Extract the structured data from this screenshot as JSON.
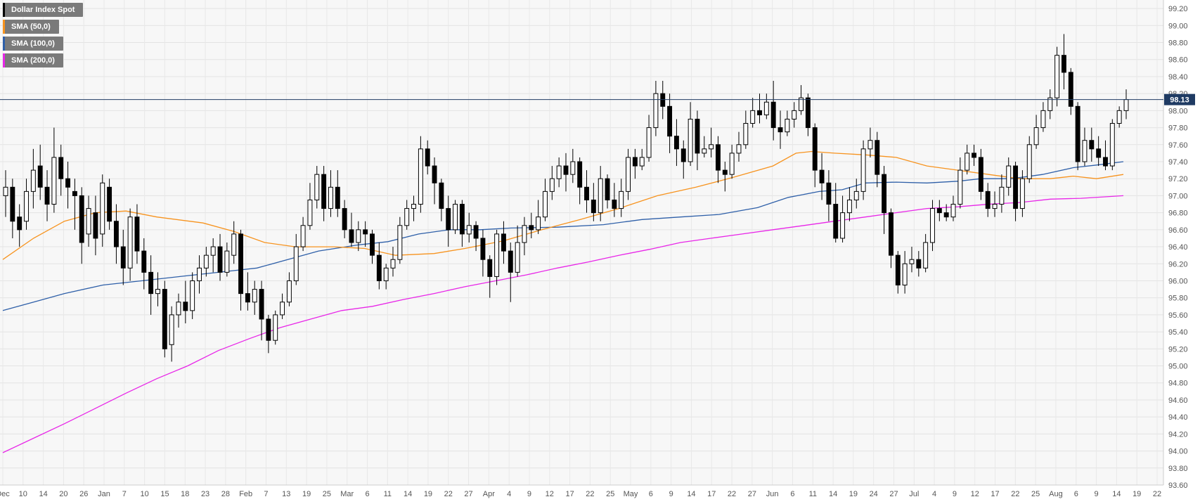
{
  "legend": [
    {
      "label": "Dollar Index Spot",
      "color": "#000000"
    },
    {
      "label": "SMA (50,0)",
      "color": "#f7931e"
    },
    {
      "label": "SMA (100,0)",
      "color": "#2e5fa8"
    },
    {
      "label": "SMA (200,0)",
      "color": "#e826e8"
    }
  ],
  "current_price_label": "98.13",
  "chart_data": {
    "type": "candlestick",
    "ylim": [
      93.6,
      99.3
    ],
    "y_ticks": [
      "93.60",
      "93.80",
      "94.00",
      "94.20",
      "94.40",
      "94.60",
      "94.80",
      "95.00",
      "95.20",
      "95.40",
      "95.60",
      "95.80",
      "96.00",
      "96.20",
      "96.40",
      "96.60",
      "96.80",
      "97.00",
      "97.20",
      "97.40",
      "97.60",
      "97.80",
      "98.00",
      "98.20",
      "98.40",
      "98.60",
      "98.80",
      "99.00",
      "99.20"
    ],
    "x_tick_labels": [
      "Dec",
      "10",
      "14",
      "20",
      "26",
      "Jan",
      "7",
      "10",
      "15",
      "18",
      "23",
      "28",
      "Feb",
      "7",
      "13",
      "19",
      "25",
      "Mar",
      "6",
      "11",
      "14",
      "19",
      "22",
      "27",
      "Apr",
      "4",
      "9",
      "12",
      "17",
      "22",
      "25",
      "May",
      "6",
      "9",
      "14",
      "17",
      "22",
      "27",
      "Jun",
      "6",
      "11",
      "14",
      "19",
      "24",
      "27",
      "Jul",
      "4",
      "9",
      "12",
      "17",
      "22",
      "25",
      "Aug",
      "6",
      "9",
      "14",
      "19",
      "22"
    ],
    "current_price": 98.13,
    "sma_50": [
      [
        0,
        96.25
      ],
      [
        40,
        96.5
      ],
      [
        80,
        96.7
      ],
      [
        120,
        96.8
      ],
      [
        160,
        96.82
      ],
      [
        200,
        96.75
      ],
      [
        260,
        96.68
      ],
      [
        300,
        96.58
      ],
      [
        340,
        96.45
      ],
      [
        380,
        96.4
      ],
      [
        430,
        96.4
      ],
      [
        470,
        96.38
      ],
      [
        510,
        96.3
      ],
      [
        560,
        96.32
      ],
      [
        600,
        96.38
      ],
      [
        650,
        96.47
      ],
      [
        700,
        96.6
      ],
      [
        750,
        96.72
      ],
      [
        800,
        96.85
      ],
      [
        850,
        97.0
      ],
      [
        900,
        97.1
      ],
      [
        950,
        97.22
      ],
      [
        1000,
        97.35
      ],
      [
        1030,
        97.5
      ],
      [
        1050,
        97.52
      ],
      [
        1080,
        97.5
      ],
      [
        1120,
        97.48
      ],
      [
        1160,
        97.45
      ],
      [
        1200,
        97.35
      ],
      [
        1240,
        97.3
      ],
      [
        1280,
        97.25
      ],
      [
        1320,
        97.2
      ],
      [
        1360,
        97.2
      ],
      [
        1390,
        97.23
      ],
      [
        1420,
        97.2
      ],
      [
        1455,
        97.25
      ]
    ],
    "sma_100": [
      [
        0,
        95.65
      ],
      [
        40,
        95.75
      ],
      [
        80,
        95.85
      ],
      [
        130,
        95.95
      ],
      [
        180,
        96.0
      ],
      [
        230,
        96.05
      ],
      [
        280,
        96.1
      ],
      [
        330,
        96.15
      ],
      [
        370,
        96.25
      ],
      [
        410,
        96.35
      ],
      [
        460,
        96.42
      ],
      [
        500,
        96.46
      ],
      [
        540,
        96.55
      ],
      [
        580,
        96.6
      ],
      [
        620,
        96.6
      ],
      [
        660,
        96.62
      ],
      [
        720,
        96.63
      ],
      [
        780,
        96.66
      ],
      [
        830,
        96.72
      ],
      [
        880,
        96.75
      ],
      [
        930,
        96.78
      ],
      [
        980,
        96.86
      ],
      [
        1020,
        96.98
      ],
      [
        1060,
        97.05
      ],
      [
        1090,
        97.07
      ],
      [
        1120,
        97.15
      ],
      [
        1160,
        97.16
      ],
      [
        1200,
        97.15
      ],
      [
        1240,
        97.17
      ],
      [
        1270,
        97.2
      ],
      [
        1310,
        97.2
      ],
      [
        1350,
        97.25
      ],
      [
        1390,
        97.33
      ],
      [
        1420,
        97.36
      ],
      [
        1455,
        97.4
      ]
    ],
    "sma_200": [
      [
        0,
        93.98
      ],
      [
        40,
        94.15
      ],
      [
        80,
        94.32
      ],
      [
        120,
        94.5
      ],
      [
        160,
        94.68
      ],
      [
        200,
        94.85
      ],
      [
        240,
        95.0
      ],
      [
        280,
        95.18
      ],
      [
        320,
        95.32
      ],
      [
        360,
        95.45
      ],
      [
        400,
        95.55
      ],
      [
        440,
        95.65
      ],
      [
        480,
        95.7
      ],
      [
        520,
        95.78
      ],
      [
        560,
        95.85
      ],
      [
        600,
        95.93
      ],
      [
        640,
        96.0
      ],
      [
        680,
        96.07
      ],
      [
        720,
        96.15
      ],
      [
        760,
        96.22
      ],
      [
        800,
        96.3
      ],
      [
        840,
        96.37
      ],
      [
        880,
        96.45
      ],
      [
        920,
        96.5
      ],
      [
        960,
        96.55
      ],
      [
        1000,
        96.6
      ],
      [
        1040,
        96.65
      ],
      [
        1080,
        96.7
      ],
      [
        1120,
        96.75
      ],
      [
        1160,
        96.8
      ],
      [
        1200,
        96.85
      ],
      [
        1240,
        96.87
      ],
      [
        1280,
        96.9
      ],
      [
        1320,
        96.92
      ],
      [
        1360,
        96.96
      ],
      [
        1400,
        96.97
      ],
      [
        1455,
        97.0
      ]
    ],
    "candles": [
      [
        97.0,
        97.1,
        96.75,
        97.3
      ],
      [
        97.1,
        96.7,
        96.5,
        97.2
      ],
      [
        96.75,
        96.6,
        96.4,
        96.9
      ],
      [
        96.7,
        97.05,
        96.6,
        97.2
      ],
      [
        97.05,
        97.3,
        96.85,
        97.55
      ],
      [
        97.35,
        97.1,
        96.95,
        97.6
      ],
      [
        97.1,
        96.9,
        96.7,
        97.3
      ],
      [
        96.9,
        97.45,
        96.8,
        97.8
      ],
      [
        97.45,
        97.2,
        97.0,
        97.6
      ],
      [
        97.2,
        97.1,
        96.85,
        97.4
      ],
      [
        97.05,
        97.0,
        96.6,
        97.2
      ],
      [
        97.0,
        96.45,
        96.2,
        97.1
      ],
      [
        96.55,
        96.85,
        96.4,
        97.0
      ],
      [
        96.8,
        96.5,
        96.3,
        97.0
      ],
      [
        96.55,
        97.15,
        96.4,
        97.25
      ],
      [
        97.1,
        96.7,
        96.6,
        97.2
      ],
      [
        96.7,
        96.4,
        96.2,
        96.9
      ],
      [
        96.4,
        96.15,
        95.95,
        96.6
      ],
      [
        96.15,
        96.75,
        96.0,
        96.85
      ],
      [
        96.75,
        96.35,
        96.2,
        96.9
      ],
      [
        96.35,
        96.1,
        95.9,
        96.5
      ],
      [
        96.1,
        95.85,
        95.6,
        96.3
      ],
      [
        95.85,
        95.9,
        95.7,
        96.1
      ],
      [
        95.9,
        95.2,
        95.1,
        96.0
      ],
      [
        95.25,
        95.6,
        95.05,
        95.7
      ],
      [
        95.6,
        95.75,
        95.45,
        95.85
      ],
      [
        95.75,
        95.65,
        95.5,
        96.0
      ],
      [
        95.65,
        96.0,
        95.55,
        96.1
      ],
      [
        96.0,
        96.15,
        95.85,
        96.3
      ],
      [
        96.15,
        96.3,
        96.05,
        96.4
      ],
      [
        96.3,
        96.4,
        96.1,
        96.5
      ],
      [
        96.4,
        96.1,
        96.0,
        96.55
      ],
      [
        96.1,
        96.35,
        96.05,
        96.45
      ],
      [
        96.3,
        96.55,
        96.2,
        96.7
      ],
      [
        96.55,
        95.85,
        95.65,
        96.6
      ],
      [
        95.85,
        95.75,
        95.65,
        96.1
      ],
      [
        95.75,
        95.9,
        95.6,
        96.0
      ],
      [
        95.9,
        95.55,
        95.3,
        96.0
      ],
      [
        95.55,
        95.3,
        95.15,
        95.6
      ],
      [
        95.3,
        95.6,
        95.25,
        95.65
      ],
      [
        95.6,
        95.75,
        95.55,
        95.85
      ],
      [
        95.75,
        96.0,
        95.7,
        96.1
      ],
      [
        96.0,
        96.4,
        95.95,
        96.55
      ],
      [
        96.4,
        96.65,
        96.35,
        96.75
      ],
      [
        96.65,
        96.95,
        96.6,
        97.15
      ],
      [
        96.95,
        97.25,
        96.85,
        97.35
      ],
      [
        97.25,
        96.85,
        96.7,
        97.35
      ],
      [
        96.85,
        97.1,
        96.75,
        97.3
      ],
      [
        97.1,
        96.85,
        96.75,
        97.3
      ],
      [
        96.85,
        96.6,
        96.5,
        96.95
      ],
      [
        96.6,
        96.45,
        96.4,
        96.8
      ],
      [
        96.45,
        96.6,
        96.35,
        96.7
      ],
      [
        96.6,
        96.55,
        96.4,
        96.7
      ],
      [
        96.55,
        96.3,
        96.2,
        96.6
      ],
      [
        96.3,
        96.0,
        95.9,
        96.45
      ],
      [
        96.0,
        96.15,
        95.9,
        96.2
      ],
      [
        96.15,
        96.25,
        96.05,
        96.4
      ],
      [
        96.25,
        96.65,
        96.2,
        96.75
      ],
      [
        96.65,
        96.85,
        96.6,
        96.95
      ],
      [
        96.85,
        96.9,
        96.7,
        97.0
      ],
      [
        96.9,
        97.55,
        96.8,
        97.7
      ],
      [
        97.55,
        97.35,
        97.25,
        97.65
      ],
      [
        97.35,
        97.15,
        96.9,
        97.45
      ],
      [
        97.15,
        96.85,
        96.7,
        97.2
      ],
      [
        96.85,
        96.6,
        96.4,
        97.0
      ],
      [
        96.6,
        96.9,
        96.55,
        96.95
      ],
      [
        96.9,
        96.55,
        96.4,
        96.95
      ],
      [
        96.55,
        96.65,
        96.45,
        96.8
      ],
      [
        96.65,
        96.5,
        96.35,
        96.7
      ],
      [
        96.5,
        96.25,
        96.05,
        96.6
      ],
      [
        96.25,
        96.05,
        95.8,
        96.3
      ],
      [
        96.05,
        96.55,
        95.95,
        96.6
      ],
      [
        96.55,
        96.35,
        96.2,
        96.7
      ],
      [
        96.35,
        96.1,
        95.75,
        96.45
      ],
      [
        96.1,
        96.45,
        96.05,
        96.65
      ],
      [
        96.45,
        96.65,
        96.3,
        96.75
      ],
      [
        96.65,
        96.6,
        96.5,
        96.8
      ],
      [
        96.6,
        96.75,
        96.55,
        96.95
      ],
      [
        96.75,
        97.05,
        96.7,
        97.2
      ],
      [
        97.05,
        97.2,
        96.95,
        97.35
      ],
      [
        97.2,
        97.35,
        97.1,
        97.45
      ],
      [
        97.35,
        97.25,
        97.05,
        97.5
      ],
      [
        97.25,
        97.4,
        97.15,
        97.55
      ],
      [
        97.4,
        97.1,
        96.9,
        97.45
      ],
      [
        97.1,
        96.95,
        96.8,
        97.3
      ],
      [
        96.95,
        96.8,
        96.7,
        97.15
      ],
      [
        96.8,
        97.2,
        96.7,
        97.35
      ],
      [
        97.2,
        96.95,
        96.85,
        97.25
      ],
      [
        96.95,
        96.85,
        96.75,
        97.15
      ],
      [
        96.85,
        97.05,
        96.75,
        97.2
      ],
      [
        97.05,
        97.45,
        96.95,
        97.55
      ],
      [
        97.45,
        97.35,
        97.2,
        97.55
      ],
      [
        97.35,
        97.45,
        97.3,
        97.55
      ],
      [
        97.45,
        97.8,
        97.4,
        97.95
      ],
      [
        97.8,
        98.2,
        97.7,
        98.35
      ],
      [
        98.2,
        98.05,
        97.9,
        98.35
      ],
      [
        98.05,
        97.7,
        97.5,
        98.2
      ],
      [
        97.7,
        97.55,
        97.35,
        97.9
      ],
      [
        97.55,
        97.4,
        97.2,
        97.65
      ],
      [
        97.4,
        97.9,
        97.35,
        98.1
      ],
      [
        97.9,
        97.5,
        97.3,
        98.0
      ],
      [
        97.5,
        97.55,
        97.45,
        97.7
      ],
      [
        97.55,
        97.6,
        97.45,
        97.8
      ],
      [
        97.6,
        97.3,
        97.15,
        97.7
      ],
      [
        97.3,
        97.25,
        97.05,
        97.4
      ],
      [
        97.25,
        97.5,
        97.2,
        97.6
      ],
      [
        97.5,
        97.6,
        97.4,
        97.75
      ],
      [
        97.6,
        97.85,
        97.55,
        98.0
      ],
      [
        97.85,
        98.0,
        97.8,
        98.15
      ],
      [
        98.0,
        97.95,
        97.85,
        98.2
      ],
      [
        97.95,
        98.1,
        97.9,
        98.2
      ],
      [
        98.1,
        97.8,
        97.65,
        98.35
      ],
      [
        97.8,
        97.75,
        97.55,
        98.0
      ],
      [
        97.75,
        97.9,
        97.7,
        98.0
      ],
      [
        97.9,
        98.0,
        97.8,
        98.1
      ],
      [
        98.0,
        98.15,
        97.95,
        98.3
      ],
      [
        98.15,
        97.8,
        97.7,
        98.2
      ],
      [
        97.8,
        97.3,
        97.1,
        97.85
      ],
      [
        97.3,
        97.15,
        96.95,
        97.5
      ],
      [
        97.15,
        96.9,
        96.7,
        97.3
      ],
      [
        96.9,
        96.5,
        96.45,
        97.15
      ],
      [
        96.5,
        96.8,
        96.45,
        97.0
      ],
      [
        96.8,
        96.95,
        96.7,
        97.1
      ],
      [
        96.95,
        97.05,
        96.85,
        97.2
      ],
      [
        97.05,
        97.55,
        96.95,
        97.65
      ],
      [
        97.55,
        97.65,
        97.45,
        97.8
      ],
      [
        97.65,
        97.25,
        97.1,
        97.75
      ],
      [
        97.25,
        96.8,
        96.55,
        97.35
      ],
      [
        96.8,
        96.3,
        96.15,
        96.85
      ],
      [
        96.3,
        95.95,
        95.85,
        96.35
      ],
      [
        95.95,
        96.2,
        95.85,
        96.35
      ],
      [
        96.2,
        96.25,
        96.1,
        96.4
      ],
      [
        96.25,
        96.15,
        96.05,
        96.35
      ],
      [
        96.15,
        96.45,
        96.1,
        96.55
      ],
      [
        96.45,
        96.85,
        96.35,
        96.95
      ],
      [
        96.85,
        96.8,
        96.7,
        96.95
      ],
      [
        96.8,
        96.75,
        96.7,
        96.9
      ],
      [
        96.75,
        96.9,
        96.7,
        97.0
      ],
      [
        96.9,
        97.3,
        96.85,
        97.45
      ],
      [
        97.3,
        97.5,
        97.25,
        97.6
      ],
      [
        97.5,
        97.45,
        97.35,
        97.6
      ],
      [
        97.45,
        97.05,
        96.95,
        97.55
      ],
      [
        97.05,
        96.85,
        96.75,
        97.15
      ],
      [
        96.85,
        96.9,
        96.75,
        97.05
      ],
      [
        96.9,
        97.1,
        96.8,
        97.25
      ],
      [
        97.1,
        97.35,
        97.0,
        97.45
      ],
      [
        97.35,
        96.85,
        96.7,
        97.4
      ],
      [
        96.85,
        97.2,
        96.75,
        97.3
      ],
      [
        97.2,
        97.6,
        97.15,
        97.7
      ],
      [
        97.6,
        97.8,
        97.55,
        97.95
      ],
      [
        97.8,
        98.0,
        97.75,
        98.1
      ],
      [
        98.0,
        98.15,
        97.9,
        98.25
      ],
      [
        98.15,
        98.65,
        98.05,
        98.75
      ],
      [
        98.65,
        98.45,
        98.25,
        98.9
      ],
      [
        98.45,
        98.05,
        97.95,
        98.5
      ],
      [
        98.05,
        97.4,
        97.3,
        98.1
      ],
      [
        97.4,
        97.65,
        97.35,
        97.8
      ],
      [
        97.65,
        97.55,
        97.4,
        97.8
      ],
      [
        97.55,
        97.45,
        97.35,
        97.7
      ],
      [
        97.45,
        97.35,
        97.3,
        97.65
      ],
      [
        97.35,
        97.85,
        97.3,
        97.9
      ],
      [
        97.85,
        98.0,
        97.8,
        98.05
      ],
      [
        98.0,
        98.13,
        97.9,
        98.25
      ]
    ]
  }
}
